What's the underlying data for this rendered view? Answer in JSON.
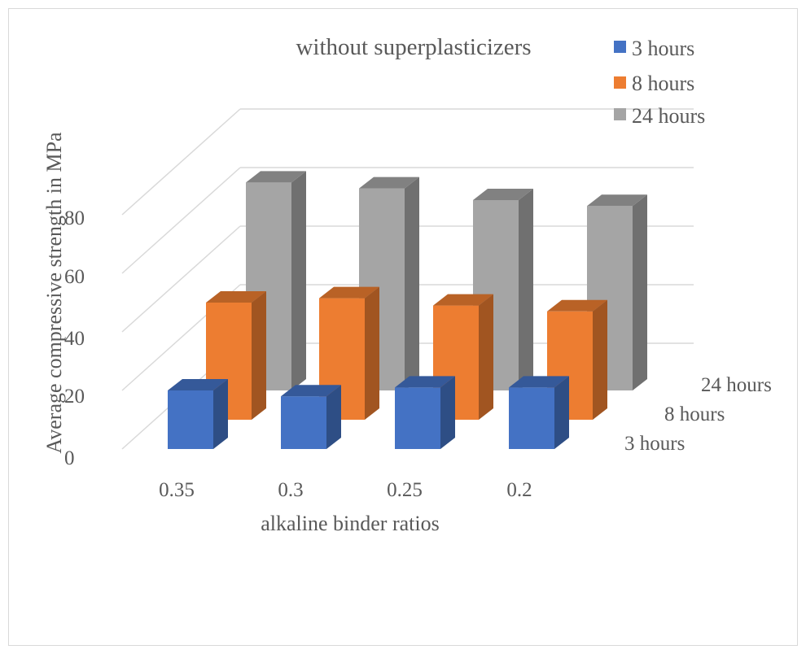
{
  "chart_data": {
    "type": "bar",
    "title": "without superplasticizers",
    "xlabel": "alkaline binder ratios",
    "ylabel": "Average compressive strength in MPa",
    "categories": [
      "0.35",
      "0.3",
      "0.25",
      "0.2"
    ],
    "depth_labels": [
      "24 hours",
      "8 hours",
      "3 hours"
    ],
    "y_ticks": [
      "0",
      "20",
      "40",
      "60",
      "80"
    ],
    "ylim": [
      0,
      90
    ],
    "grid": true,
    "legend_position": "top-right",
    "series": [
      {
        "name": "3 hours",
        "color": "#4472C4",
        "values": [
          20,
          18,
          21,
          21
        ]
      },
      {
        "name": "8 hours",
        "color": "#ED7D31",
        "values": [
          40,
          41.5,
          39,
          37
        ]
      },
      {
        "name": "24 hours",
        "color": "#A5A5A5",
        "values": [
          71,
          69,
          65,
          63
        ]
      }
    ]
  }
}
